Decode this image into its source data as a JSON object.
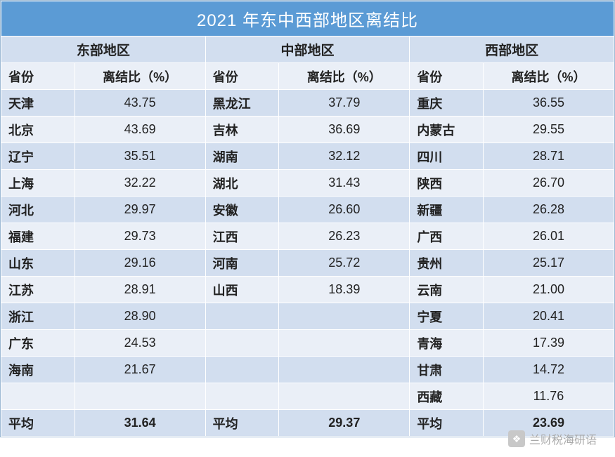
{
  "title": "2021 年东中西部地区离结比",
  "colors": {
    "header_bg": "#5b9bd5",
    "header_text": "#ffffff",
    "band_dark": "#d2deef",
    "band_light": "#eaeff7",
    "border": "#ffffff",
    "text": "#222222",
    "watermark": "#a9a9a9"
  },
  "column_header": {
    "province": "省份",
    "ratio": "离结比（%）"
  },
  "average_label": "平均",
  "regions": [
    {
      "name": "东部地区",
      "average": "31.64",
      "rows": [
        {
          "province": "天津",
          "value": "43.75"
        },
        {
          "province": "北京",
          "value": "43.69"
        },
        {
          "province": "辽宁",
          "value": "35.51"
        },
        {
          "province": "上海",
          "value": "32.22"
        },
        {
          "province": "河北",
          "value": "29.97"
        },
        {
          "province": "福建",
          "value": "29.73"
        },
        {
          "province": "山东",
          "value": "29.16"
        },
        {
          "province": "江苏",
          "value": "28.91"
        },
        {
          "province": "浙江",
          "value": "28.90"
        },
        {
          "province": "广东",
          "value": "24.53"
        },
        {
          "province": "海南",
          "value": "21.67"
        }
      ]
    },
    {
      "name": "中部地区",
      "average": "29.37",
      "rows": [
        {
          "province": "黑龙江",
          "value": "37.79"
        },
        {
          "province": "吉林",
          "value": "36.69"
        },
        {
          "province": "湖南",
          "value": "32.12"
        },
        {
          "province": "湖北",
          "value": "31.43"
        },
        {
          "province": "安徽",
          "value": "26.60"
        },
        {
          "province": "江西",
          "value": "26.23"
        },
        {
          "province": "河南",
          "value": "25.72"
        },
        {
          "province": "山西",
          "value": "18.39"
        }
      ]
    },
    {
      "name": "西部地区",
      "average": "23.69",
      "rows": [
        {
          "province": "重庆",
          "value": "36.55"
        },
        {
          "province": "内蒙古",
          "value": "29.55"
        },
        {
          "province": "四川",
          "value": "28.71"
        },
        {
          "province": "陕西",
          "value": "26.70"
        },
        {
          "province": "新疆",
          "value": "26.28"
        },
        {
          "province": "广西",
          "value": "26.01"
        },
        {
          "province": "贵州",
          "value": "25.17"
        },
        {
          "province": "云南",
          "value": "21.00"
        },
        {
          "province": "宁夏",
          "value": "20.41"
        },
        {
          "province": "青海",
          "value": "17.39"
        },
        {
          "province": "甘肃",
          "value": "14.72"
        },
        {
          "province": "西藏",
          "value": "11.76"
        }
      ]
    }
  ],
  "body_row_count": 12,
  "watermark": {
    "icon_glyph": "❖",
    "text": "兰财税海研语"
  }
}
